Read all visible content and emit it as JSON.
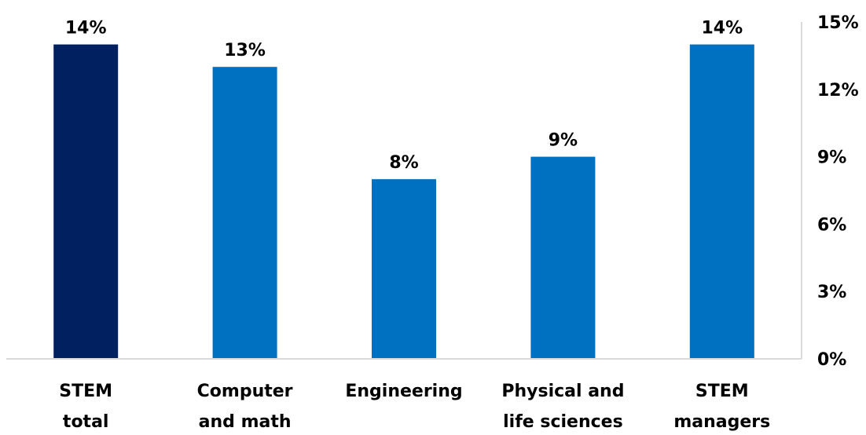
{
  "chart_data": {
    "type": "bar",
    "title": "",
    "xlabel": "",
    "ylabel": "",
    "categories": [
      [
        "STEM",
        "total"
      ],
      [
        "Computer",
        "and math"
      ],
      [
        "Engineering"
      ],
      [
        "Physical and",
        "life sciences"
      ],
      [
        "STEM",
        "managers"
      ]
    ],
    "values": [
      14,
      13,
      8,
      9,
      14
    ],
    "data_labels": [
      "14%",
      "13%",
      "8%",
      "9%",
      "14%"
    ],
    "bar_colors": [
      "#002060",
      "#0070C0",
      "#0070C0",
      "#0070C0",
      "#0070C0"
    ],
    "ylim": [
      0,
      15
    ],
    "y_ticks": [
      0,
      3,
      6,
      9,
      12,
      15
    ],
    "y_tick_labels": [
      "0%",
      "3%",
      "6%",
      "9%",
      "12%",
      "15%"
    ],
    "y_axis_side": "right",
    "grid": false,
    "legend": "none",
    "axis_color": "#D9D9D9"
  }
}
